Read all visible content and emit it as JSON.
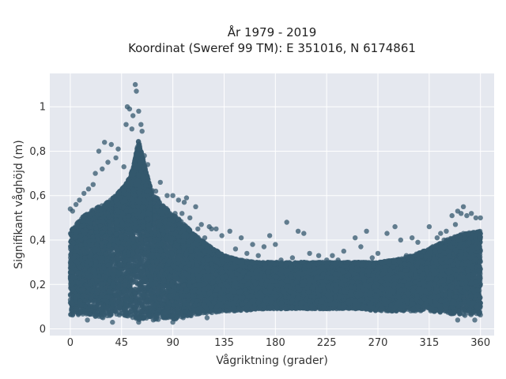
{
  "chart_data": {
    "type": "scatter",
    "title": "År 1979 - 2019",
    "subtitle": "Koordinat (Sweref 99 TM): E 351016, N 6174861",
    "xlabel": "Vågriktning (grader)",
    "ylabel": "Signifikant våghöjd (m)",
    "xlim": [
      -18,
      372
    ],
    "ylim": [
      -0.03,
      1.15
    ],
    "x_ticks": [
      0,
      45,
      90,
      135,
      180,
      225,
      270,
      315,
      360
    ],
    "x_tick_labels": [
      "0",
      "45",
      "90",
      "135",
      "180",
      "225",
      "270",
      "315",
      "360"
    ],
    "y_ticks": [
      0,
      0.2,
      0.4,
      0.6,
      0.8,
      1
    ],
    "y_tick_labels": [
      "0",
      "0,2",
      "0,4",
      "0,6",
      "0,8",
      "1"
    ],
    "grid": true,
    "background": "#e5e8ef",
    "marker_color": "#34586e",
    "envelope": {
      "x": [
        0,
        10,
        20,
        30,
        40,
        50,
        55,
        60,
        65,
        70,
        80,
        90,
        100,
        110,
        120,
        135,
        150,
        165,
        180,
        195,
        210,
        225,
        240,
        255,
        270,
        285,
        300,
        315,
        330,
        345,
        360
      ],
      "y_top": [
        0.44,
        0.5,
        0.54,
        0.56,
        0.6,
        0.66,
        0.72,
        0.85,
        0.74,
        0.64,
        0.56,
        0.52,
        0.47,
        0.42,
        0.38,
        0.33,
        0.31,
        0.3,
        0.3,
        0.3,
        0.3,
        0.3,
        0.3,
        0.3,
        0.3,
        0.31,
        0.33,
        0.36,
        0.4,
        0.43,
        0.44
      ],
      "y_bottom": [
        0.06,
        0.06,
        0.05,
        0.05,
        0.05,
        0.05,
        0.04,
        0.04,
        0.04,
        0.04,
        0.04,
        0.04,
        0.05,
        0.06,
        0.07,
        0.08,
        0.08,
        0.09,
        0.09,
        0.09,
        0.09,
        0.09,
        0.09,
        0.09,
        0.08,
        0.08,
        0.08,
        0.08,
        0.07,
        0.06,
        0.06
      ]
    },
    "outliers": [
      [
        57,
        1.1
      ],
      [
        58,
        1.07
      ],
      [
        50,
        1.0
      ],
      [
        52,
        0.99
      ],
      [
        60,
        0.98
      ],
      [
        55,
        0.96
      ],
      [
        62,
        0.92
      ],
      [
        49,
        0.92
      ],
      [
        54,
        0.9
      ],
      [
        63,
        0.89
      ],
      [
        30,
        0.84
      ],
      [
        36,
        0.83
      ],
      [
        42,
        0.81
      ],
      [
        25,
        0.8
      ],
      [
        65,
        0.78
      ],
      [
        40,
        0.77
      ],
      [
        33,
        0.75
      ],
      [
        28,
        0.72
      ],
      [
        47,
        0.73
      ],
      [
        68,
        0.74
      ],
      [
        22,
        0.7
      ],
      [
        20,
        0.65
      ],
      [
        16,
        0.63
      ],
      [
        12,
        0.61
      ],
      [
        8,
        0.58
      ],
      [
        5,
        0.56
      ],
      [
        0,
        0.54
      ],
      [
        2,
        0.53
      ],
      [
        79,
        0.66
      ],
      [
        75,
        0.62
      ],
      [
        85,
        0.6
      ],
      [
        90,
        0.6
      ],
      [
        95,
        0.58
      ],
      [
        102,
        0.59
      ],
      [
        100,
        0.57
      ],
      [
        110,
        0.55
      ],
      [
        92,
        0.52
      ],
      [
        98,
        0.52
      ],
      [
        105,
        0.5
      ],
      [
        115,
        0.47
      ],
      [
        122,
        0.46
      ],
      [
        124,
        0.45
      ],
      [
        128,
        0.45
      ],
      [
        112,
        0.45
      ],
      [
        140,
        0.44
      ],
      [
        150,
        0.41
      ],
      [
        160,
        0.38
      ],
      [
        170,
        0.37
      ],
      [
        175,
        0.42
      ],
      [
        180,
        0.38
      ],
      [
        190,
        0.48
      ],
      [
        200,
        0.44
      ],
      [
        205,
        0.43
      ],
      [
        210,
        0.34
      ],
      [
        218,
        0.33
      ],
      [
        230,
        0.33
      ],
      [
        240,
        0.35
      ],
      [
        250,
        0.41
      ],
      [
        260,
        0.44
      ],
      [
        255,
        0.37
      ],
      [
        270,
        0.34
      ],
      [
        278,
        0.43
      ],
      [
        285,
        0.46
      ],
      [
        290,
        0.4
      ],
      [
        300,
        0.41
      ],
      [
        305,
        0.39
      ],
      [
        315,
        0.46
      ],
      [
        318,
        0.37
      ],
      [
        325,
        0.43
      ],
      [
        330,
        0.44
      ],
      [
        335,
        0.51
      ],
      [
        340,
        0.53
      ],
      [
        343,
        0.52
      ],
      [
        345,
        0.55
      ],
      [
        348,
        0.51
      ],
      [
        352,
        0.52
      ],
      [
        356,
        0.5
      ],
      [
        360,
        0.5
      ],
      [
        338,
        0.47
      ],
      [
        328,
        0.4
      ],
      [
        322,
        0.41
      ],
      [
        118,
        0.41
      ],
      [
        133,
        0.42
      ],
      [
        145,
        0.36
      ],
      [
        155,
        0.34
      ],
      [
        165,
        0.33
      ],
      [
        185,
        0.31
      ],
      [
        195,
        0.32
      ],
      [
        225,
        0.31
      ],
      [
        235,
        0.31
      ],
      [
        265,
        0.32
      ],
      [
        295,
        0.33
      ],
      [
        310,
        0.35
      ],
      [
        37,
        0.03
      ],
      [
        60,
        0.03
      ],
      [
        90,
        0.03
      ],
      [
        340,
        0.04
      ],
      [
        355,
        0.04
      ],
      [
        15,
        0.04
      ],
      [
        120,
        0.05
      ]
    ],
    "density_points": 22000
  }
}
